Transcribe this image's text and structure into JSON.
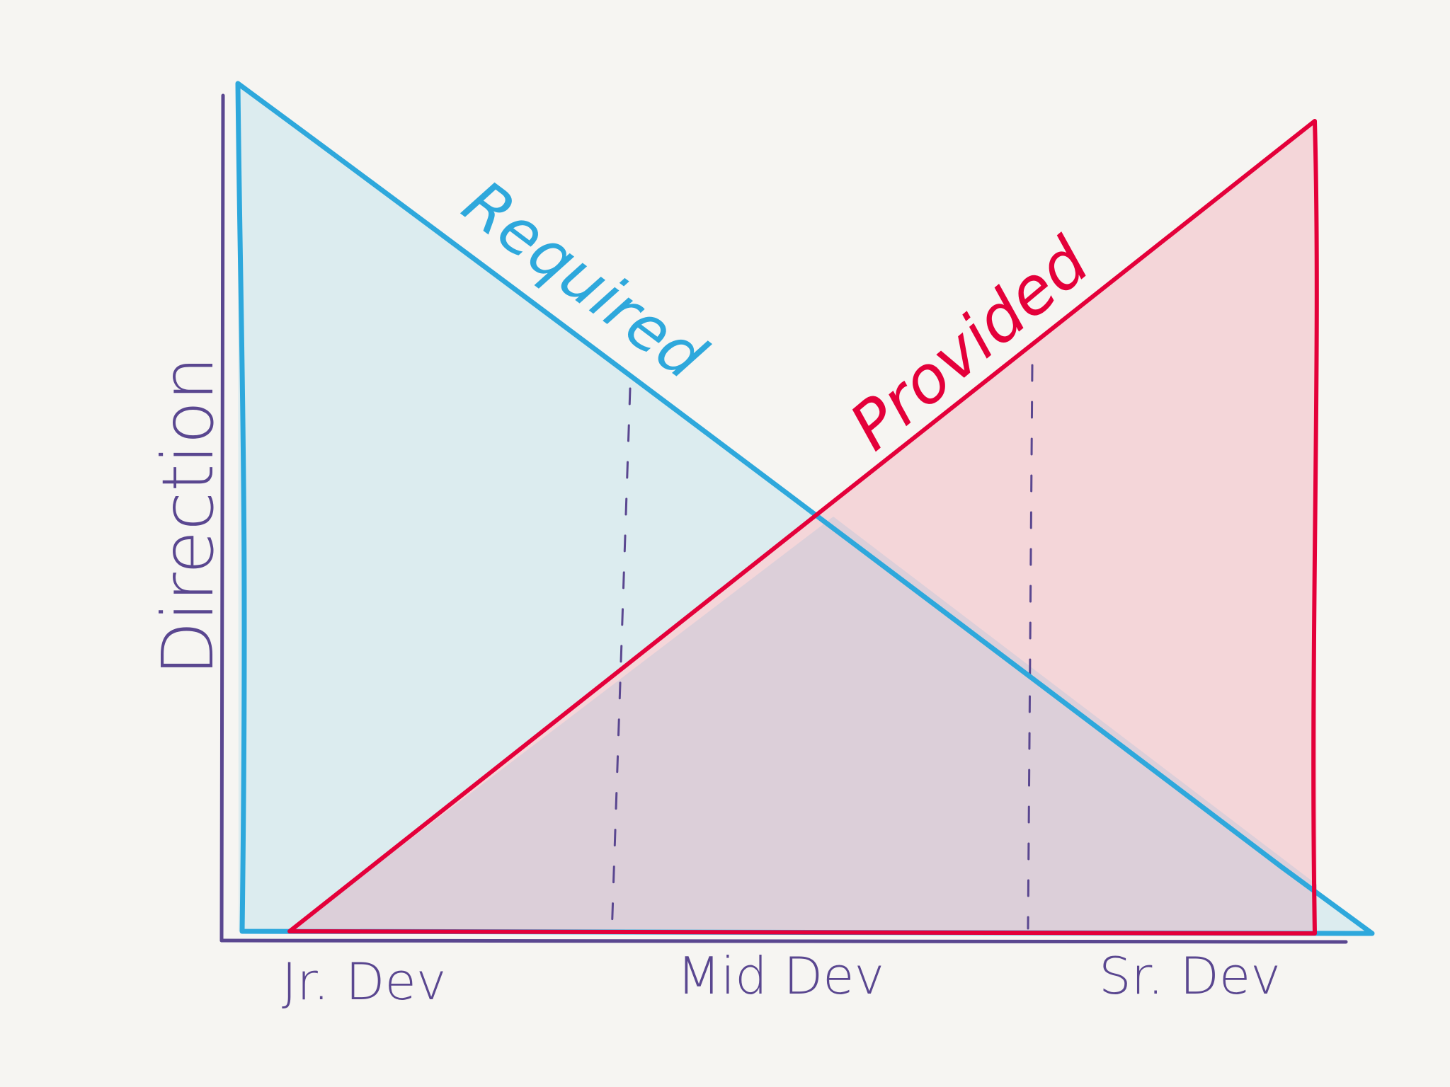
{
  "diagram": {
    "y_axis_label": "Direction",
    "x_axis_labels": [
      "Jr. Dev",
      "Mid Dev",
      "Sr. Dev"
    ],
    "series": [
      {
        "name": "Required",
        "trend": "decreasing from Jr. Dev to Sr. Dev",
        "color": "#2ea8dc",
        "fill": "#dcecef"
      },
      {
        "name": "Provided",
        "trend": "increasing from Jr. Dev to Sr. Dev",
        "color": "#e4003a",
        "fill": "#f4d6d9"
      }
    ],
    "overlap_fill": "#dccfd9",
    "axis_color": "#5a4790",
    "background": "#f6f5f2"
  }
}
